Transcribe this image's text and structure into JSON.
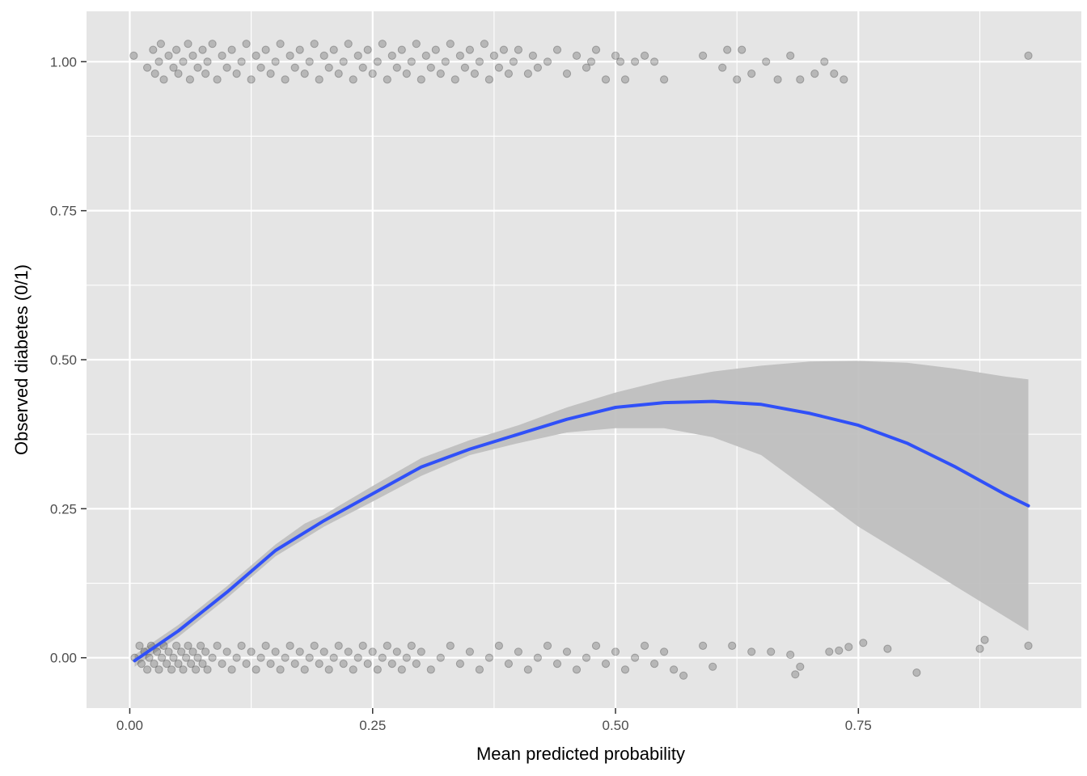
{
  "chart_data": {
    "type": "scatter",
    "title": "",
    "xlabel": "Mean predicted probability",
    "ylabel": "Observed diabetes (0/1)",
    "xlim": [
      -0.0445,
      0.9795
    ],
    "ylim": [
      -0.0845,
      1.0845
    ],
    "x_ticks": [
      0.0,
      0.25,
      0.5,
      0.75
    ],
    "x_tick_labels": [
      "0.00",
      "0.25",
      "0.50",
      "0.75"
    ],
    "y_ticks": [
      0.0,
      0.25,
      0.5,
      0.75,
      1.0
    ],
    "y_tick_labels": [
      "0.00",
      "0.25",
      "0.50",
      "0.75",
      "1.00"
    ],
    "grid": true,
    "legend": "none",
    "colors": {
      "panel_background": "#e5e5e5",
      "grid": "#ffffff",
      "points": "#000000",
      "smooth_line": "#3050f8",
      "confidence_band": "#bdbdbd"
    },
    "series": [
      {
        "kind": "jittered-points",
        "observed": 1,
        "x": [
          0.004,
          0.018,
          0.024,
          0.026,
          0.03,
          0.032,
          0.035,
          0.04,
          0.045,
          0.048,
          0.05,
          0.055,
          0.06,
          0.062,
          0.065,
          0.07,
          0.075,
          0.078,
          0.08,
          0.085,
          0.09,
          0.095,
          0.1,
          0.105,
          0.11,
          0.115,
          0.12,
          0.125,
          0.13,
          0.135,
          0.14,
          0.145,
          0.15,
          0.155,
          0.16,
          0.165,
          0.17,
          0.175,
          0.18,
          0.185,
          0.19,
          0.195,
          0.2,
          0.205,
          0.21,
          0.215,
          0.22,
          0.225,
          0.23,
          0.235,
          0.24,
          0.245,
          0.25,
          0.255,
          0.26,
          0.265,
          0.27,
          0.275,
          0.28,
          0.285,
          0.29,
          0.295,
          0.3,
          0.305,
          0.31,
          0.315,
          0.32,
          0.325,
          0.33,
          0.335,
          0.34,
          0.345,
          0.35,
          0.355,
          0.36,
          0.365,
          0.37,
          0.375,
          0.38,
          0.385,
          0.39,
          0.395,
          0.4,
          0.41,
          0.415,
          0.42,
          0.43,
          0.44,
          0.45,
          0.46,
          0.47,
          0.475,
          0.48,
          0.49,
          0.5,
          0.505,
          0.51,
          0.52,
          0.53,
          0.54,
          0.55,
          0.59,
          0.61,
          0.615,
          0.625,
          0.63,
          0.64,
          0.655,
          0.667,
          0.68,
          0.69,
          0.705,
          0.715,
          0.725,
          0.735,
          0.925
        ],
        "y": [
          1.01,
          0.99,
          1.02,
          0.98,
          1.0,
          1.03,
          0.97,
          1.01,
          0.99,
          1.02,
          0.98,
          1.0,
          1.03,
          0.97,
          1.01,
          0.99,
          1.02,
          0.98,
          1.0,
          1.03,
          0.97,
          1.01,
          0.99,
          1.02,
          0.98,
          1.0,
          1.03,
          0.97,
          1.01,
          0.99,
          1.02,
          0.98,
          1.0,
          1.03,
          0.97,
          1.01,
          0.99,
          1.02,
          0.98,
          1.0,
          1.03,
          0.97,
          1.01,
          0.99,
          1.02,
          0.98,
          1.0,
          1.03,
          0.97,
          1.01,
          0.99,
          1.02,
          0.98,
          1.0,
          1.03,
          0.97,
          1.01,
          0.99,
          1.02,
          0.98,
          1.0,
          1.03,
          0.97,
          1.01,
          0.99,
          1.02,
          0.98,
          1.0,
          1.03,
          0.97,
          1.01,
          0.99,
          1.02,
          0.98,
          1.0,
          1.03,
          0.97,
          1.01,
          0.99,
          1.02,
          0.98,
          1.0,
          1.02,
          0.98,
          1.01,
          0.99,
          1.0,
          1.02,
          0.98,
          1.01,
          0.99,
          1.0,
          1.02,
          0.97,
          1.01,
          1.0,
          0.97,
          1.0,
          1.01,
          1.0,
          0.97,
          1.01,
          0.99,
          1.02,
          0.97,
          1.02,
          0.98,
          1.0,
          0.97,
          1.01,
          0.97,
          0.98,
          1.0,
          0.98,
          0.97,
          1.01
        ]
      },
      {
        "kind": "jittered-points",
        "observed": 0,
        "x": [
          0.005,
          0.01,
          0.012,
          0.015,
          0.018,
          0.02,
          0.022,
          0.025,
          0.028,
          0.03,
          0.033,
          0.035,
          0.038,
          0.04,
          0.043,
          0.045,
          0.048,
          0.05,
          0.053,
          0.055,
          0.058,
          0.06,
          0.063,
          0.065,
          0.068,
          0.07,
          0.073,
          0.075,
          0.078,
          0.08,
          0.085,
          0.09,
          0.095,
          0.1,
          0.105,
          0.11,
          0.115,
          0.12,
          0.125,
          0.13,
          0.135,
          0.14,
          0.145,
          0.15,
          0.155,
          0.16,
          0.165,
          0.17,
          0.175,
          0.18,
          0.185,
          0.19,
          0.195,
          0.2,
          0.205,
          0.21,
          0.215,
          0.22,
          0.225,
          0.23,
          0.235,
          0.24,
          0.245,
          0.25,
          0.255,
          0.26,
          0.265,
          0.27,
          0.275,
          0.28,
          0.285,
          0.29,
          0.295,
          0.3,
          0.31,
          0.32,
          0.33,
          0.34,
          0.35,
          0.36,
          0.37,
          0.38,
          0.39,
          0.4,
          0.41,
          0.42,
          0.43,
          0.44,
          0.45,
          0.46,
          0.47,
          0.48,
          0.49,
          0.5,
          0.51,
          0.52,
          0.53,
          0.54,
          0.55,
          0.56,
          0.57,
          0.59,
          0.6,
          0.62,
          0.64,
          0.66,
          0.68,
          0.685,
          0.69,
          0.72,
          0.73,
          0.74,
          0.755,
          0.78,
          0.81,
          0.875,
          0.88,
          0.925
        ],
        "y": [
          0.0,
          0.02,
          -0.01,
          0.01,
          -0.02,
          0.0,
          0.02,
          -0.01,
          0.01,
          -0.02,
          0.0,
          0.02,
          -0.01,
          0.01,
          -0.02,
          0.0,
          0.02,
          -0.01,
          0.01,
          -0.02,
          0.0,
          0.02,
          -0.01,
          0.01,
          -0.02,
          0.0,
          0.02,
          -0.01,
          0.01,
          -0.02,
          0.0,
          0.02,
          -0.01,
          0.01,
          -0.02,
          0.0,
          0.02,
          -0.01,
          0.01,
          -0.02,
          0.0,
          0.02,
          -0.01,
          0.01,
          -0.02,
          0.0,
          0.02,
          -0.01,
          0.01,
          -0.02,
          0.0,
          0.02,
          -0.01,
          0.01,
          -0.02,
          0.0,
          0.02,
          -0.01,
          0.01,
          -0.02,
          0.0,
          0.02,
          -0.01,
          0.01,
          -0.02,
          0.0,
          0.02,
          -0.01,
          0.01,
          -0.02,
          0.0,
          0.02,
          -0.01,
          0.01,
          -0.02,
          0.0,
          0.02,
          -0.01,
          0.01,
          -0.02,
          0.0,
          0.02,
          -0.01,
          0.01,
          -0.02,
          0.0,
          0.02,
          -0.01,
          0.01,
          -0.02,
          0.0,
          0.02,
          -0.01,
          0.01,
          -0.02,
          0.0,
          0.02,
          -0.01,
          0.01,
          -0.02,
          -0.03,
          0.02,
          -0.015,
          0.02,
          0.01,
          0.01,
          0.005,
          -0.028,
          -0.015,
          0.01,
          0.012,
          0.018,
          0.025,
          0.015,
          -0.025,
          0.015,
          0.03,
          0.02
        ]
      },
      {
        "kind": "smooth",
        "x": [
          0.005,
          0.05,
          0.1,
          0.15,
          0.18,
          0.2,
          0.25,
          0.3,
          0.35,
          0.4,
          0.45,
          0.5,
          0.55,
          0.6,
          0.65,
          0.7,
          0.75,
          0.8,
          0.85,
          0.9,
          0.925
        ],
        "y": [
          -0.005,
          0.045,
          0.11,
          0.18,
          0.21,
          0.23,
          0.275,
          0.32,
          0.35,
          0.375,
          0.4,
          0.42,
          0.428,
          0.43,
          0.425,
          0.41,
          0.39,
          0.36,
          0.32,
          0.275,
          0.255
        ],
        "ci_low": [
          -0.015,
          0.035,
          0.1,
          0.17,
          0.2,
          0.22,
          0.262,
          0.305,
          0.34,
          0.36,
          0.378,
          0.385,
          0.385,
          0.37,
          0.34,
          0.28,
          0.22,
          0.17,
          0.12,
          0.07,
          0.045
        ],
        "ci_high": [
          0.005,
          0.055,
          0.12,
          0.19,
          0.225,
          0.24,
          0.288,
          0.335,
          0.365,
          0.39,
          0.42,
          0.445,
          0.465,
          0.48,
          0.49,
          0.497,
          0.498,
          0.495,
          0.485,
          0.472,
          0.467
        ]
      }
    ]
  }
}
